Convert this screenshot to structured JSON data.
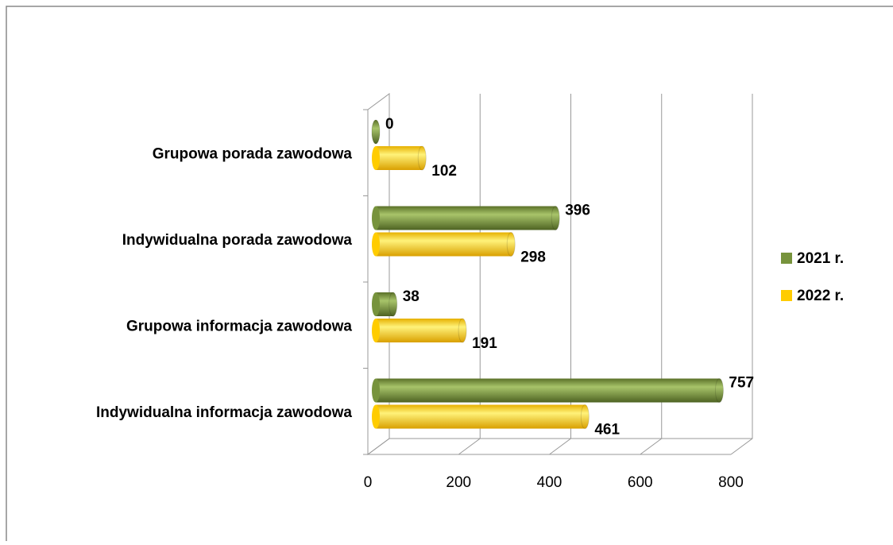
{
  "chart_data": {
    "type": "bar3d_horizontal",
    "categories": [
      "Grupowa porada zawodowa",
      "Indywidualna porada zawodowa",
      "Grupowa informacja zawodowa",
      "Indywidualna informacja zawodowa"
    ],
    "series": [
      {
        "name": "2021 r.",
        "color": "#77933c",
        "values": [
          0,
          396,
          38,
          757
        ]
      },
      {
        "name": "2022 r.",
        "color": "#ffcc00",
        "values": [
          102,
          298,
          191,
          461
        ]
      }
    ],
    "xlim": [
      0,
      800
    ],
    "xticks": [
      0,
      200,
      400,
      600,
      800
    ],
    "grid": true,
    "legend": "right"
  }
}
